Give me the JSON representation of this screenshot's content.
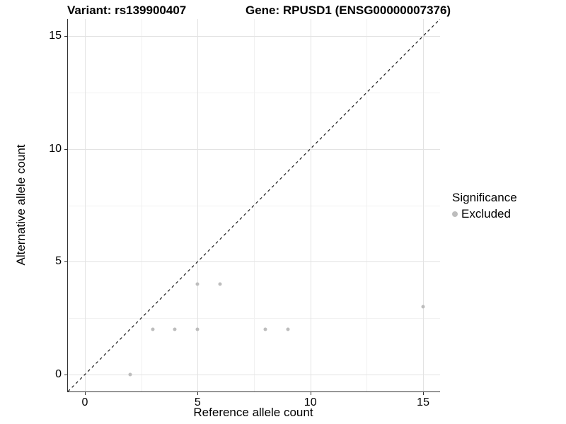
{
  "chart_data": {
    "type": "scatter",
    "titles": {
      "variant": "Variant: rs139900407",
      "gene": "Gene: RPUSD1 (ENSG00000007376)"
    },
    "xlabel": "Reference allele count",
    "ylabel": "Alternative allele count",
    "xlim": [
      -0.75,
      15.75
    ],
    "ylim": [
      -0.75,
      15.75
    ],
    "x_major_ticks": [
      0,
      5,
      10,
      15
    ],
    "y_major_ticks": [
      0,
      5,
      10,
      15
    ],
    "x_minor_gridlines": [
      2.5,
      7.5,
      12.5
    ],
    "y_minor_gridlines": [
      2.5,
      7.5,
      12.5
    ],
    "grid": "major+minor",
    "identity_line": {
      "equation": "y = x",
      "style": "dashed",
      "color": "#1a1a1a"
    },
    "series": [
      {
        "name": "Excluded",
        "color": "#bdbdbd",
        "points": [
          {
            "x": 2,
            "y": 0
          },
          {
            "x": 3,
            "y": 2
          },
          {
            "x": 4,
            "y": 2
          },
          {
            "x": 5,
            "y": 2
          },
          {
            "x": 5,
            "y": 4
          },
          {
            "x": 6,
            "y": 4
          },
          {
            "x": 8,
            "y": 2
          },
          {
            "x": 9,
            "y": 2
          },
          {
            "x": 15,
            "y": 3
          }
        ]
      }
    ],
    "legend": {
      "title": "Significance",
      "position": "right",
      "items": [
        {
          "label": "Excluded",
          "color": "#bdbdbd",
          "marker": "circle"
        }
      ]
    },
    "colors": {
      "background": "#ffffff",
      "axis_line": "#333333",
      "grid_major": "#e3e3e3",
      "grid_minor": "#f1f1f1",
      "text": "#000000"
    }
  }
}
